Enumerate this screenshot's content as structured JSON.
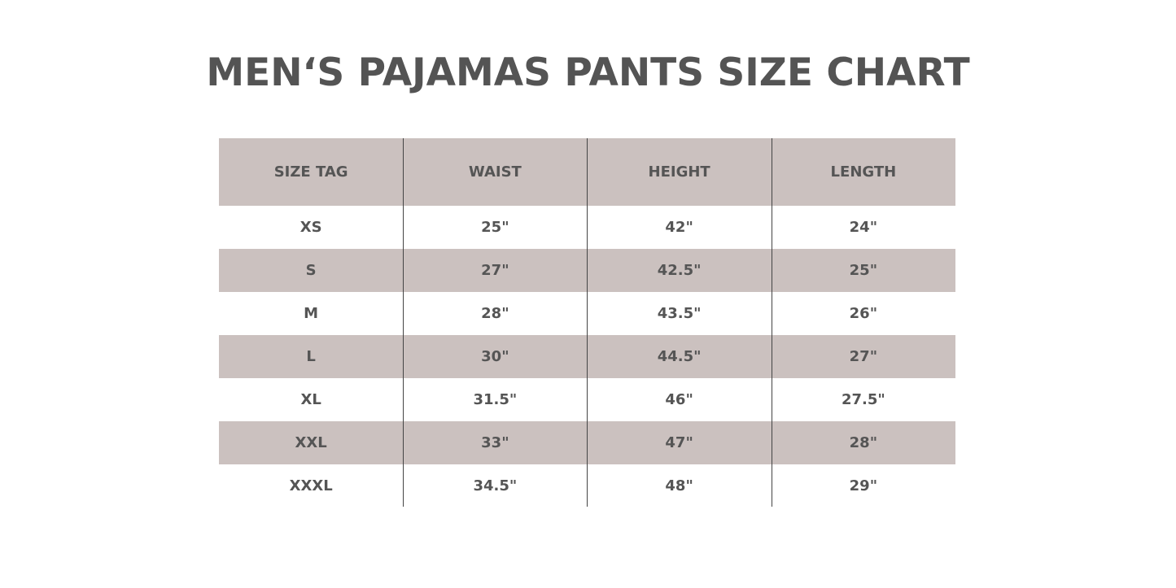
{
  "title": "MEN‘S PAJAMAS PANTS SIZE CHART",
  "colors": {
    "header_bg": "#cbc1bf",
    "shaded_row_bg": "#cbc1bf",
    "text": "#555555"
  },
  "table": {
    "headers": [
      "SIZE TAG",
      "WAIST",
      "HEIGHT",
      "LENGTH"
    ],
    "rows": [
      [
        "XS",
        "25\"",
        "42\"",
        "24\""
      ],
      [
        "S",
        "27\"",
        "42.5\"",
        "25\""
      ],
      [
        "M",
        "28\"",
        "43.5\"",
        "26\""
      ],
      [
        "L",
        "30\"",
        "44.5\"",
        "27\""
      ],
      [
        "XL",
        "31.5\"",
        "46\"",
        "27.5\""
      ],
      [
        "XXL",
        "33\"",
        "47\"",
        "28\""
      ],
      [
        "XXXL",
        "34.5\"",
        "48\"",
        "29\""
      ]
    ]
  }
}
